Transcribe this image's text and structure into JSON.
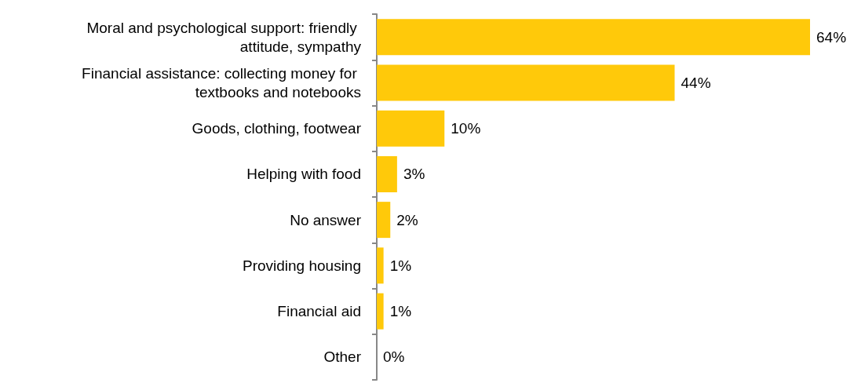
{
  "chart_data": {
    "type": "bar",
    "orientation": "horizontal",
    "categories": [
      "Moral and psychological support: friendly attitude, sympathy",
      "Financial assistance: collecting money for textbooks and notebooks",
      "Goods, clothing, footwear",
      "Helping with food",
      "No answer",
      "Providing housing",
      "Financial aid",
      "Other"
    ],
    "values": [
      64,
      44,
      10,
      3,
      2,
      1,
      1,
      0
    ],
    "value_labels": [
      "64%",
      "44%",
      "10%",
      "3%",
      "2%",
      "1%",
      "1%",
      "0%"
    ],
    "color": "#ffc90a",
    "grid": false
  }
}
